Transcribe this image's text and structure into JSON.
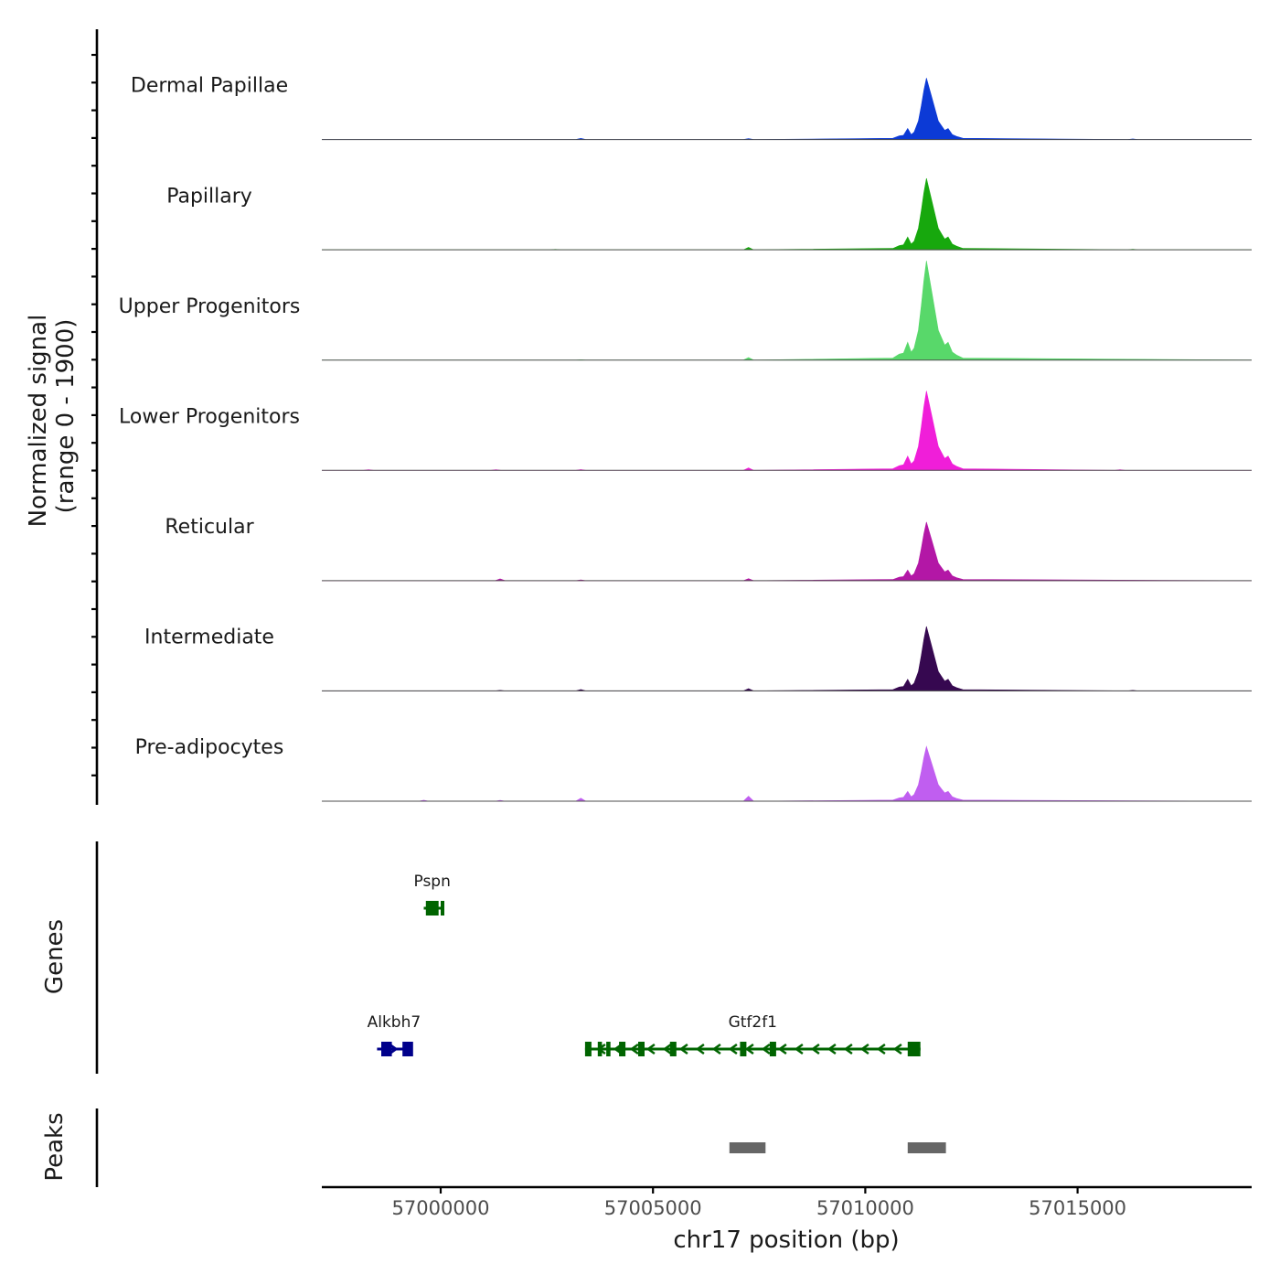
{
  "chart_data": {
    "type": "area",
    "chromosome": "chr17",
    "xlabel": "chr17 position (bp)",
    "ylabel_signal": [
      "Normalized signal",
      "(range 0 - 1900)"
    ],
    "signal_range": [
      0,
      1900
    ],
    "xlim": [
      56997200,
      57019100
    ],
    "x_ticks": [
      57000000,
      57005000,
      57010000,
      57015000
    ],
    "x_tick_labels": [
      "57000000",
      "57005000",
      "57010000",
      "57015000"
    ],
    "tracks": [
      {
        "name": "Dermal Papillae",
        "color": "#0c3ad6",
        "peak_scale": 0.62,
        "minor": [
          [
            57003300,
            0.012
          ],
          [
            57007250,
            0.01
          ],
          [
            57016300,
            0.006
          ]
        ]
      },
      {
        "name": "Papillary",
        "color": "#17a80d",
        "peak_scale": 0.72,
        "minor": [
          [
            57007250,
            0.024
          ],
          [
            57002700,
            0.004
          ],
          [
            57016300,
            0.006
          ]
        ]
      },
      {
        "name": "Upper Progenitors",
        "color": "#58d86a",
        "peak_scale": 1.0,
        "minor": [
          [
            57007250,
            0.026
          ],
          [
            57003300,
            0.004
          ]
        ]
      },
      {
        "name": "Lower Progenitors",
        "color": "#f01ed9",
        "peak_scale": 0.8,
        "minor": [
          [
            57007250,
            0.025
          ],
          [
            56998300,
            0.006
          ],
          [
            57001300,
            0.007
          ],
          [
            57003300,
            0.008
          ],
          [
            57016000,
            0.006
          ]
        ]
      },
      {
        "name": "Reticular",
        "color": "#b317a6",
        "peak_scale": 0.59,
        "minor": [
          [
            57001400,
            0.018
          ],
          [
            57007250,
            0.02
          ],
          [
            57003300,
            0.008
          ]
        ]
      },
      {
        "name": "Intermediate",
        "color": "#360850",
        "peak_scale": 0.65,
        "minor": [
          [
            57003300,
            0.014
          ],
          [
            57007250,
            0.022
          ],
          [
            57001400,
            0.006
          ],
          [
            57016300,
            0.006
          ]
        ]
      },
      {
        "name": "Pre-adipocytes",
        "color": "#c05ef0",
        "peak_scale": 0.55,
        "minor": [
          [
            57007250,
            0.05
          ],
          [
            57003300,
            0.03
          ],
          [
            56999600,
            0.01
          ],
          [
            57001400,
            0.008
          ]
        ]
      }
    ],
    "main_peak": [
      [
        57010650,
        0.02
      ],
      [
        57010800,
        0.06
      ],
      [
        57010900,
        0.07
      ],
      [
        57011000,
        0.18
      ],
      [
        57011080,
        0.08
      ],
      [
        57011150,
        0.12
      ],
      [
        57011250,
        0.3
      ],
      [
        57011320,
        0.55
      ],
      [
        57011380,
        0.8
      ],
      [
        57011440,
        1.0
      ],
      [
        57011500,
        0.85
      ],
      [
        57011560,
        0.7
      ],
      [
        57011640,
        0.5
      ],
      [
        57011720,
        0.3
      ],
      [
        57011800,
        0.22
      ],
      [
        57011870,
        0.15
      ],
      [
        57011950,
        0.18
      ],
      [
        57012050,
        0.08
      ],
      [
        57012150,
        0.05
      ],
      [
        57012300,
        0.02
      ]
    ],
    "genes_track_label": "Genes",
    "genes": [
      {
        "name": "Pspn",
        "color": "#006400",
        "row": 1,
        "start": 56999600,
        "end": 57000000,
        "strand": "-",
        "exons": [
          [
            56999650,
            56999950
          ],
          [
            57000000,
            57000050
          ]
        ]
      },
      {
        "name": "Alkbh7",
        "color": "#00008b",
        "row": 2,
        "start": 56998500,
        "end": 56999300,
        "strand": "+",
        "exons": [
          [
            56998600,
            56998850
          ],
          [
            56999100,
            56999350
          ]
        ]
      },
      {
        "name": "Gtf2f1",
        "color": "#006400",
        "row": 2,
        "start": 57003400,
        "end": 57011300,
        "strand": "-",
        "exons": [
          [
            57003400,
            57003550
          ],
          [
            57003700,
            57003800
          ],
          [
            57003900,
            57004000
          ],
          [
            57004200,
            57004350
          ],
          [
            57004650,
            57004800
          ],
          [
            57005400,
            57005550
          ],
          [
            57007050,
            57007200
          ],
          [
            57007750,
            57007900
          ],
          [
            57011000,
            57011300
          ]
        ]
      }
    ],
    "peaks_track_label": "Peaks",
    "peaks": [
      [
        57006800,
        57007650
      ],
      [
        57011000,
        57011900
      ]
    ]
  }
}
